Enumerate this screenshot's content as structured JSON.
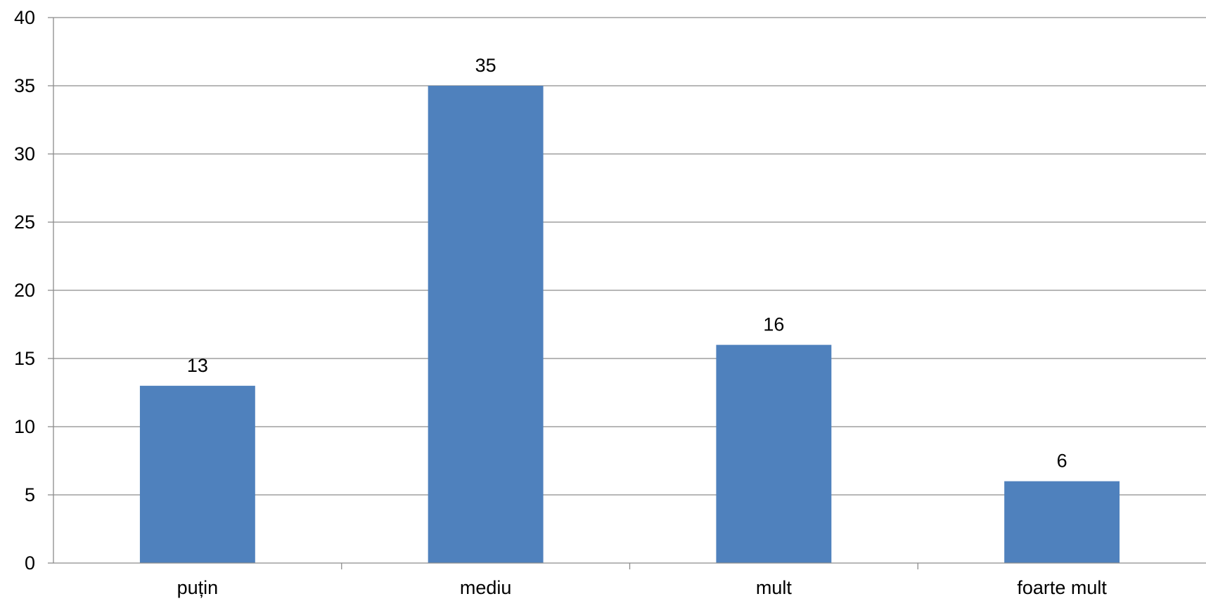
{
  "chart_data": {
    "type": "bar",
    "categories": [
      "puțin",
      "mediu",
      "mult",
      "foarte mult"
    ],
    "series": [
      {
        "values": [
          13,
          35,
          16,
          6
        ],
        "color": "#4f81bd"
      }
    ],
    "data_labels": [
      "13",
      "35",
      "16",
      "6"
    ],
    "y_ticks": [
      "0",
      "5",
      "10",
      "15",
      "20",
      "25",
      "30",
      "35",
      "40"
    ],
    "ylim": [
      0,
      40
    ],
    "y_step": 5,
    "grid": true,
    "legend": "none",
    "colors": {
      "bar": "#4f81bd",
      "grid": "#8c8c8c",
      "text": "#000000"
    }
  }
}
